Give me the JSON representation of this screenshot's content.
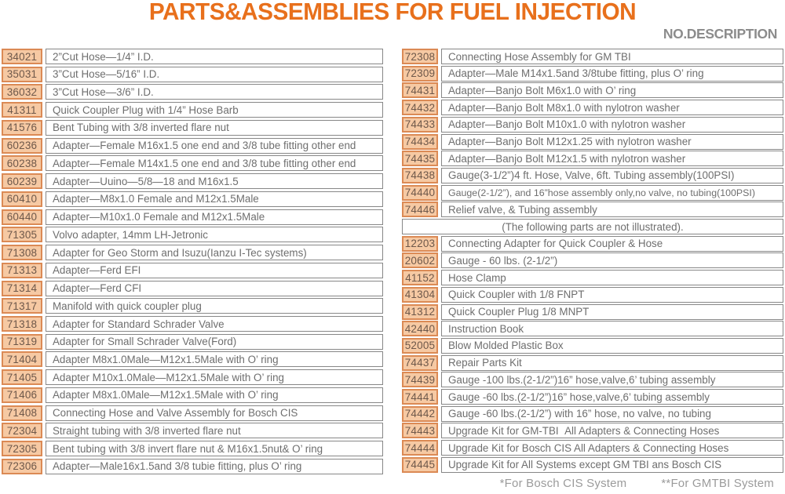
{
  "header": {
    "title": "PARTS&ASSEMBLIES FOR FUEL INJECTION",
    "right_label": "NO.DESCRIPTION"
  },
  "colors": {
    "accent": "#e8701c",
    "gray_label": "#8c8c8c",
    "num_bg": "#f6c9a3",
    "num_border": "#db8a55",
    "num_text": "#6e584a",
    "desc_border": "#878787",
    "desc_text": "#6e6e6e",
    "footnote": "#9b9b9b"
  },
  "left_table": {
    "rows": [
      {
        "no": "34021",
        "desc": "2”Cut Hose—1/4” I.D."
      },
      {
        "no": "35031",
        "desc": "3”Cut Hose—5/16” I.D."
      },
      {
        "no": "36032",
        "desc": "3”Cut Hose—3/6” I.D."
      },
      {
        "no": "41311",
        "desc": "Quick Coupler Plug with 1/4” Hose Barb"
      },
      {
        "no": "41576",
        "desc": "Bent Tubing with 3/8 inverted flare nut"
      },
      {
        "no": "60236",
        "desc": "Adapter—Female M16x1.5 one end and 3/8 tube fitting other end"
      },
      {
        "no": "60238",
        "desc": "Adapter—Female M14x1.5 one end and 3/8 tube fitting other end"
      },
      {
        "no": "60239",
        "desc": "Adapter—Uuino—5/8—18 and M16x1.5"
      },
      {
        "no": "60410",
        "desc": "Adapter—M8x1.0 Female and M12x1.5Male"
      },
      {
        "no": "60440",
        "desc": "Adapter—M10x1.0 Female and M12x1.5Male"
      },
      {
        "no": "71305",
        "desc": "Volvo adapter, 14mm LH-Jetronic"
      },
      {
        "no": "71308",
        "desc": "Adapter for Geo Storm and Isuzu(Ianzu I-Tec systems)"
      },
      {
        "no": "71313",
        "desc": "Adapter—Ferd EFI"
      },
      {
        "no": "71314",
        "desc": "Adapter—Ferd CFI"
      },
      {
        "no": "71317",
        "desc": "Manifold with quick coupler plug"
      },
      {
        "no": "71318",
        "desc": "Adapter for Standard Schrader Valve"
      },
      {
        "no": "71319",
        "desc": "Adapter for Small Schrader Valve(Ford)"
      },
      {
        "no": "71404",
        "desc": "Adapter M8x1.0Male—M12x1.5Male with O’ ring"
      },
      {
        "no": "71405",
        "desc": "Adapter M10x1.0Male—M12x1.5Male with O’ ring"
      },
      {
        "no": "71406",
        "desc": "Adapter M8x1.0Male—M12x1.5Male with O’ ring"
      },
      {
        "no": "71408",
        "desc": "Connecting Hose and Valve Assembly for Bosch CIS"
      },
      {
        "no": "72304",
        "desc": "Straight tubing with 3/8 inverted flare nut"
      },
      {
        "no": "72305",
        "desc": "Bent tubing with 3/8 invert flare nut & M16x1.5nut& O’ ring"
      },
      {
        "no": "72306",
        "desc": "Adapter—Male16x1.5and 3/8 tubie fitting, plus O’ ring"
      }
    ]
  },
  "right_table": {
    "rows": [
      {
        "no": "72308",
        "desc": "Connecting Hose Assembly for GM TBI"
      },
      {
        "no": "72309",
        "desc": "Adapter—Male M14x1.5and 3/8tube fitting, plus O’ ring"
      },
      {
        "no": "74431",
        "desc": "Adapter—Banjo Bolt M6x1.0 with O’ ring"
      },
      {
        "no": "74432",
        "desc": "Adapter—Banjo Bolt M8x1.0 with nylotron washer"
      },
      {
        "no": "74433",
        "desc": "Adapter—Banjo Bolt M10x1.0 with nylotron washer"
      },
      {
        "no": "74434",
        "desc": "Adapter—Banjo Bolt M12x1.25 with nylotron washer"
      },
      {
        "no": "74435",
        "desc": "Adapter—Banjo Bolt M12x1.5 with nylotron washer"
      },
      {
        "no": "74438",
        "desc": "Gauge(3-1/2”)4 ft. Hose, Valve, 6ft. Tubing assembly(100PSI)"
      },
      {
        "no": "74440",
        "desc": "Gauge(2-1/2”), and 16”hose assembly only,no valve, no tubing(100PSI)"
      },
      {
        "no": "74446",
        "desc": "Relief valve, & Tubing assembly"
      },
      {
        "note": "(The following parts are not illustrated)."
      },
      {
        "no": "12203",
        "desc": "Connecting Adapter for Quick Coupler & Hose"
      },
      {
        "no": "20602",
        "desc": "Gauge - 60 lbs. (2-1/2”)"
      },
      {
        "no": "41152",
        "desc": "Hose Clamp"
      },
      {
        "no": "41304",
        "desc": "Quick Coupler with 1/8 FNPT"
      },
      {
        "no": "41312",
        "desc": "Quick Coupler Plug 1/8 MNPT"
      },
      {
        "no": "42440",
        "desc": "Instruction Book"
      },
      {
        "no": "52005",
        "desc": "Blow Molded Plastic Box"
      },
      {
        "no": "74437",
        "desc": "Repair Parts Kit"
      },
      {
        "no": "74439",
        "desc": "Gauge -100 lbs.(2-1/2”)16” hose,valve,6’ tubing assembly"
      },
      {
        "no": "74441",
        "desc": "Gauge -60 lbs.(2-1/2”)16” hose,valve,6’ tubing assembly"
      },
      {
        "no": "74442",
        "desc": "Gauge -60 lbs.(2-1/2”) with 16” hose, no valve, no tubing"
      },
      {
        "no": "74443",
        "desc": "Upgrade Kit for GM-TBI  All Adapters & Connecting Hoses"
      },
      {
        "no": "74444",
        "desc": "Upgrade Kit for Bosch CIS All Adapters & Connecting Hoses"
      },
      {
        "no": "74445",
        "desc": "Upgrade Kit for All Systems except GM TBI ans Bosch CIS"
      }
    ]
  },
  "footer": {
    "note1": "*For Bosch CIS System",
    "note2": "**For GMTBI System"
  }
}
